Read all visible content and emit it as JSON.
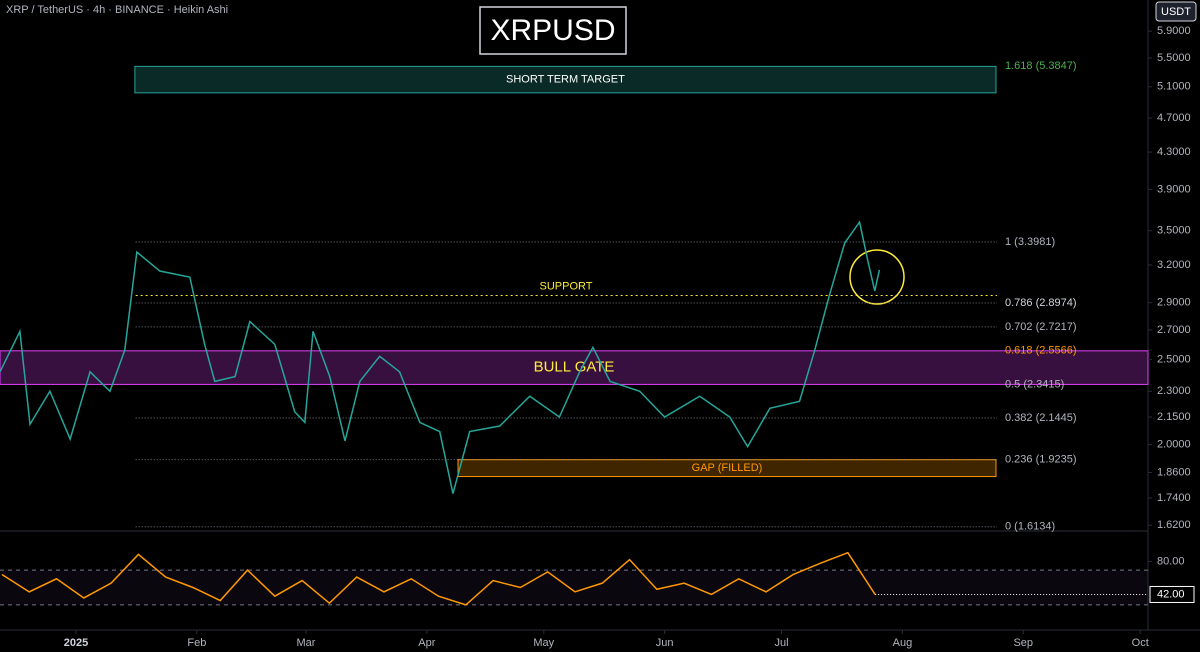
{
  "header": {
    "symbol": "XRP / TetherUS · 4h · BINANCE · Heikin Ashi",
    "title": "XRPUSD",
    "currency_button": "USDT"
  },
  "chart_data": [
    {
      "type": "line",
      "log_scale": true,
      "xlim": [
        -19.5,
        275
      ],
      "xticks": [
        {
          "value": 0,
          "label": "2025"
        },
        {
          "value": 31,
          "label": "Feb"
        },
        {
          "value": 59,
          "label": "Mar"
        },
        {
          "value": 90,
          "label": "Apr"
        },
        {
          "value": 120,
          "label": "May"
        },
        {
          "value": 151,
          "label": "Jun"
        },
        {
          "value": 181,
          "label": "Jul"
        },
        {
          "value": 212,
          "label": "Aug"
        },
        {
          "value": 243,
          "label": "Sep"
        },
        {
          "value": 273,
          "label": "Oct"
        }
      ],
      "ylim": [
        1.6,
        6.4
      ],
      "yticks": [
        {
          "value": 5.9,
          "label": "5.9000"
        },
        {
          "value": 5.5,
          "label": "5.5000"
        },
        {
          "value": 5.1,
          "label": "5.1000"
        },
        {
          "value": 4.7,
          "label": "4.7000"
        },
        {
          "value": 4.3,
          "label": "4.3000"
        },
        {
          "value": 3.9,
          "label": "3.9000"
        },
        {
          "value": 3.5,
          "label": "3.5000"
        },
        {
          "value": 3.2,
          "label": "3.2000"
        },
        {
          "value": 2.9,
          "label": "2.9000"
        },
        {
          "value": 2.7,
          "label": "2.7000"
        },
        {
          "value": 2.5,
          "label": "2.5000"
        },
        {
          "value": 2.3,
          "label": "2.3000"
        },
        {
          "value": 2.15,
          "label": "2.1500"
        },
        {
          "value": 2.0,
          "label": "2.0000"
        },
        {
          "value": 1.86,
          "label": "1.8600"
        },
        {
          "value": 1.74,
          "label": "1.7400"
        },
        {
          "value": 1.62,
          "label": "1.6200"
        }
      ],
      "series": [
        {
          "color": "#26a69a",
          "x": [
            -19.5,
            -14.4,
            -11.8,
            -6.7,
            -1.5,
            3.6,
            8.7,
            12.5,
            15.6,
            21.5,
            29.2,
            33,
            35.6,
            40.8,
            44.6,
            51,
            56.1,
            58.7,
            60.8,
            65.1,
            69,
            72.8,
            77.9,
            83,
            88.2,
            93.3,
            96.7,
            101,
            108.7,
            116.4,
            124,
            129.2,
            132.6,
            137,
            144.6,
            151,
            160,
            167.7,
            172.3,
            178,
            185.6,
            189.5,
            193.3,
            197.2,
            201,
            203.1,
            204.9,
            206.1
          ],
          "values": [
            2.42,
            2.69,
            2.11,
            2.3,
            2.03,
            2.42,
            2.3,
            2.56,
            3.31,
            3.15,
            3.1,
            2.6,
            2.36,
            2.39,
            2.76,
            2.6,
            2.18,
            2.12,
            2.69,
            2.39,
            2.02,
            2.36,
            2.52,
            2.42,
            2.12,
            2.07,
            1.76,
            2.07,
            2.1,
            2.27,
            2.15,
            2.42,
            2.58,
            2.36,
            2.3,
            2.15,
            2.27,
            2.15,
            1.99,
            2.2,
            2.24,
            2.56,
            2.96,
            3.39,
            3.58,
            3.24,
            2.99,
            3.16
          ]
        }
      ],
      "fib_levels": [
        {
          "label": "1.618 (5.3847)",
          "value": 5.3847,
          "color": "#4caf50",
          "line": false
        },
        {
          "label": "1 (3.3981)",
          "value": 3.3981,
          "color": "#b2b5be",
          "line": true
        },
        {
          "label": "0.786 (2.8974)",
          "value": 2.8974,
          "color": "#d1d4dc",
          "line": true
        },
        {
          "label": "0.702 (2.7217)",
          "value": 2.7217,
          "color": "#b2b5be",
          "line": true
        },
        {
          "label": "0.618 (2.5566)",
          "value": 2.5566,
          "color": "#ff9800",
          "line": false
        },
        {
          "label": "0.5 (2.3415)",
          "value": 2.3415,
          "color": "#b2b5be",
          "line": false
        },
        {
          "label": "0.382 (2.1445)",
          "value": 2.1445,
          "color": "#b2b5be",
          "line": true
        },
        {
          "label": "0.236 (1.9235)",
          "value": 1.9235,
          "color": "#b2b5be",
          "line": true
        },
        {
          "label": "0 (1.6134)",
          "value": 1.6134,
          "color": "#b2b5be",
          "line": true
        }
      ],
      "fib_from": 15.3,
      "zones": [
        {
          "label": "SHORT TERM TARGET",
          "lo": 5.02,
          "hi": 5.38,
          "from": 15.1,
          "to": 236,
          "color": "#26a69a",
          "text_color": "#ffffff"
        },
        {
          "label": "BULL GATE",
          "lo": 2.3415,
          "hi": 2.5566,
          "from": -19.5,
          "to": 275,
          "color": "#e040fb",
          "text_color": "#ffeb3b"
        },
        {
          "label": "GAP (FILLED)",
          "lo": 1.84,
          "hi": 1.923,
          "from": 98,
          "to": 236,
          "color": "#ff9800",
          "text_color": "#ff9800"
        }
      ],
      "support": {
        "label": "SUPPORT",
        "value": 2.955,
        "color": "#ffeb3b"
      }
    },
    {
      "type": "line",
      "xlim": [
        -19.5,
        275
      ],
      "ylim": [
        0,
        100
      ],
      "yticks": [
        {
          "value": 80,
          "label": "80.00"
        }
      ],
      "bands": [
        30,
        70
      ],
      "last_value": {
        "value": 42,
        "label": "42.00"
      },
      "series": [
        {
          "color": "#ff9800",
          "x": [
            -19,
            -12,
            -5,
            2,
            9,
            16,
            23,
            30,
            37,
            44,
            51,
            58,
            65,
            72,
            79,
            86,
            93,
            100,
            107,
            114,
            121,
            128,
            135,
            142,
            149,
            156,
            163,
            170,
            177,
            184,
            191,
            198,
            205
          ],
          "values": [
            65,
            45,
            60,
            38,
            55,
            88,
            62,
            50,
            35,
            70,
            40,
            58,
            32,
            62,
            45,
            60,
            40,
            30,
            58,
            50,
            68,
            45,
            55,
            82,
            48,
            55,
            42,
            60,
            45,
            65,
            78,
            90,
            42
          ]
        }
      ]
    }
  ]
}
